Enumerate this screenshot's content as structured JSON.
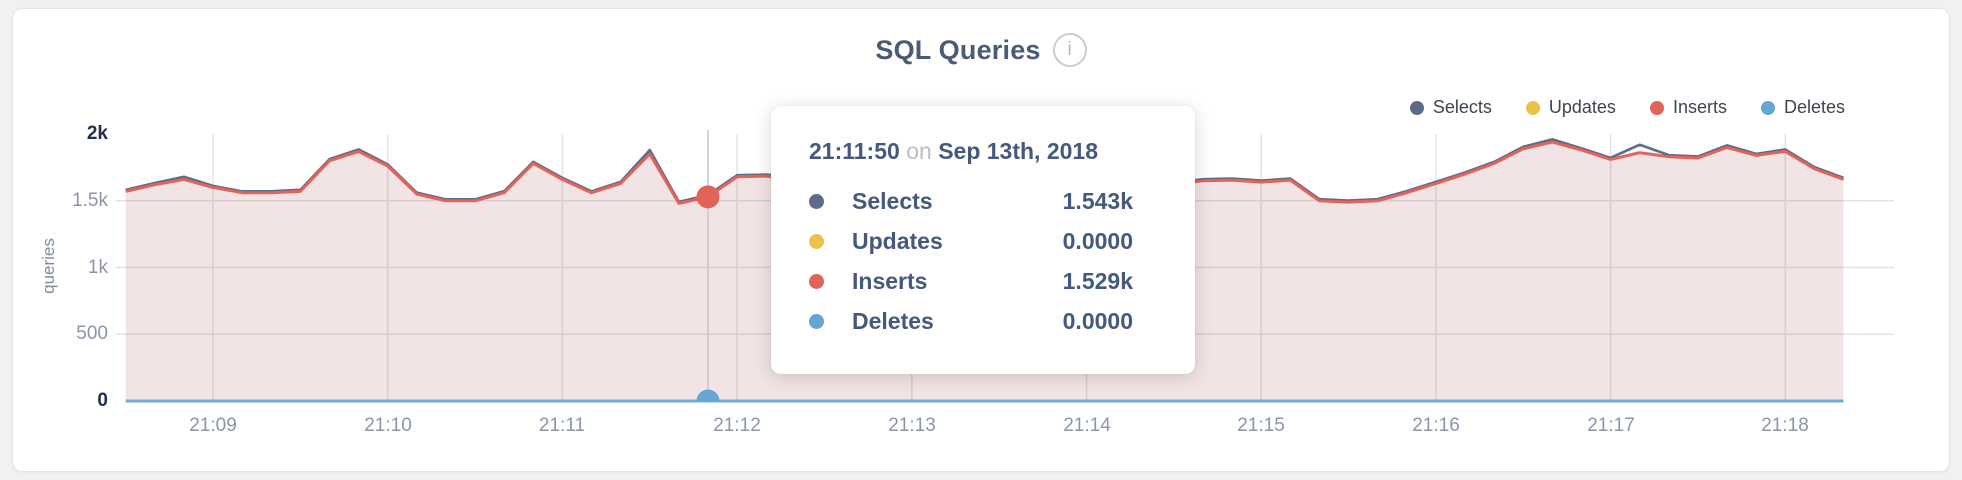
{
  "header": {
    "title": "SQL Queries",
    "info_icon": "i"
  },
  "legend": {
    "items": [
      {
        "label": "Selects",
        "color": "#5c6b87"
      },
      {
        "label": "Updates",
        "color": "#eac249"
      },
      {
        "label": "Inserts",
        "color": "#e2635a"
      },
      {
        "label": "Deletes",
        "color": "#64a5d4"
      }
    ]
  },
  "tooltip": {
    "time": "21:11:50",
    "conj": "on",
    "date": "Sep 13th, 2018",
    "rows": [
      {
        "label": "Selects",
        "value": "1.543k",
        "color": "#5c6b87"
      },
      {
        "label": "Updates",
        "value": "0.0000",
        "color": "#eac249"
      },
      {
        "label": "Inserts",
        "value": "1.529k",
        "color": "#e2635a"
      },
      {
        "label": "Deletes",
        "value": "0.0000",
        "color": "#64a5d4"
      }
    ]
  },
  "chart_data": {
    "type": "area",
    "title": "SQL Queries",
    "ylabel": "queries",
    "ylim": [
      0,
      2000
    ],
    "grid": true,
    "legend_position": "top-right",
    "x_start": "21:08:30",
    "x_end": "21:18:20",
    "point_interval_seconds": 10,
    "date": "Sep 13th, 2018",
    "x_tick_labels": [
      "21:09",
      "21:10",
      "21:11",
      "21:12",
      "21:13",
      "21:14",
      "21:15",
      "21:16",
      "21:17",
      "21:18"
    ],
    "y_tick_labels": [
      "2k",
      "1.5k",
      "1k",
      "500",
      "0"
    ],
    "hover": {
      "time": "21:11:50",
      "index": 20,
      "values": {
        "Selects": "1.543k",
        "Updates": "0.0000",
        "Inserts": "1.529k",
        "Deletes": "0.0000"
      }
    },
    "series": [
      {
        "name": "Selects",
        "color": "#5c6b87",
        "values": [
          1582,
          1633,
          1680,
          1612,
          1571,
          1571,
          1582,
          1812,
          1885,
          1772,
          1561,
          1511,
          1511,
          1572,
          1792,
          1671,
          1571,
          1642,
          1880,
          1492,
          1543,
          1692,
          1697,
          1672,
          1632,
          1602,
          1622,
          1652,
          1622,
          1582,
          1552,
          1572,
          1592,
          1562,
          1532,
          1512,
          1632,
          1662,
          1667,
          1652,
          1667,
          1512,
          1502,
          1512,
          1572,
          1642,
          1712,
          1792,
          1905,
          1960,
          1893,
          1822,
          1920,
          1842,
          1832,
          1915,
          1852,
          1885,
          1752,
          1672
        ]
      },
      {
        "name": "Updates",
        "color": "#eac249",
        "values": [
          0,
          0,
          0,
          0,
          0,
          0,
          0,
          0,
          0,
          0,
          0,
          0,
          0,
          0,
          0,
          0,
          0,
          0,
          0,
          0,
          0,
          0,
          0,
          0,
          0,
          0,
          0,
          0,
          0,
          0,
          0,
          0,
          0,
          0,
          0,
          0,
          0,
          0,
          0,
          0,
          0,
          0,
          0,
          0,
          0,
          0,
          0,
          0,
          0,
          0,
          0,
          0,
          0,
          0,
          0,
          0,
          0,
          0,
          0,
          0
        ]
      },
      {
        "name": "Inserts",
        "color": "#e2635a",
        "values": [
          1570,
          1620,
          1660,
          1600,
          1560,
          1560,
          1570,
          1800,
          1870,
          1760,
          1550,
          1500,
          1500,
          1560,
          1780,
          1660,
          1560,
          1630,
          1850,
          1480,
          1529,
          1680,
          1685,
          1660,
          1620,
          1590,
          1610,
          1640,
          1610,
          1570,
          1540,
          1560,
          1580,
          1550,
          1520,
          1500,
          1620,
          1650,
          1655,
          1640,
          1655,
          1500,
          1490,
          1500,
          1560,
          1630,
          1700,
          1780,
          1890,
          1940,
          1880,
          1810,
          1860,
          1830,
          1820,
          1900,
          1840,
          1870,
          1740,
          1660
        ]
      },
      {
        "name": "Deletes",
        "color": "#64a5d4",
        "values": [
          0,
          0,
          0,
          0,
          0,
          0,
          0,
          0,
          0,
          0,
          0,
          0,
          0,
          0,
          0,
          0,
          0,
          0,
          0,
          0,
          0,
          0,
          0,
          0,
          0,
          0,
          0,
          0,
          0,
          0,
          0,
          0,
          0,
          0,
          0,
          0,
          0,
          0,
          0,
          0,
          0,
          0,
          0,
          0,
          0,
          0,
          0,
          0,
          0,
          0,
          0,
          0,
          0,
          0,
          0,
          0,
          0,
          0,
          0,
          0
        ]
      }
    ]
  }
}
